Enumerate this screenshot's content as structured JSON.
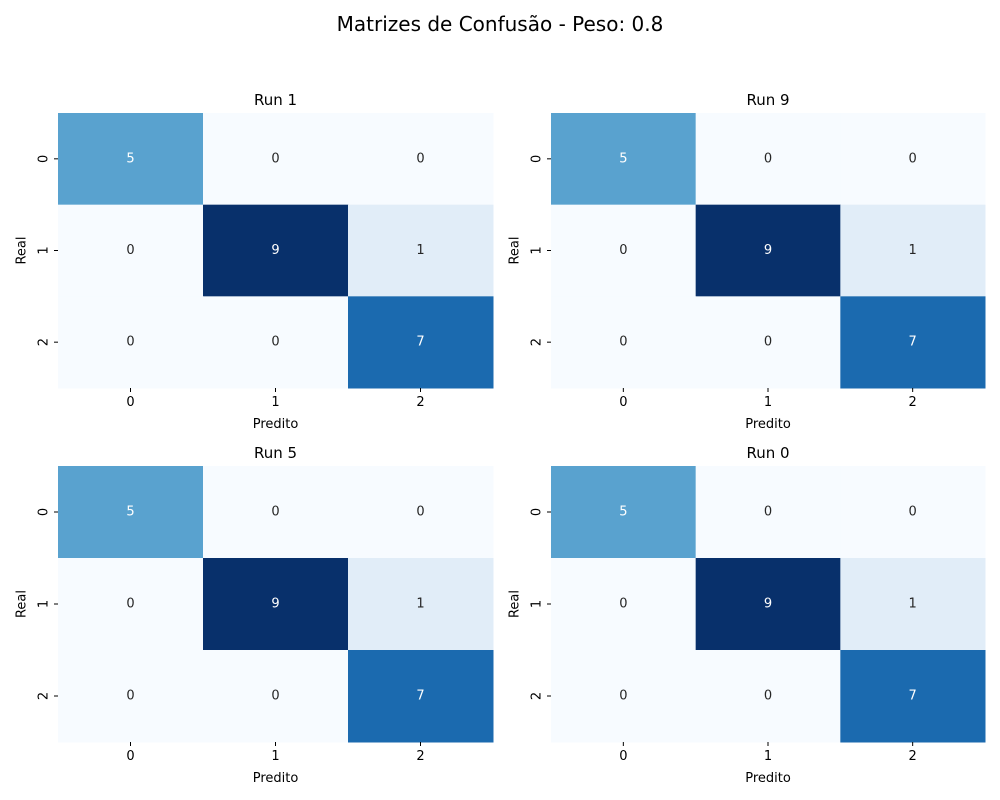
{
  "figure": {
    "title": "Matrizes de Confusão - Peso: 0.8"
  },
  "chart_data": [
    {
      "type": "heatmap",
      "title": "Run 1",
      "xlabel": "Predito",
      "ylabel": "Real",
      "x_ticks": [
        "0",
        "1",
        "2"
      ],
      "y_ticks": [
        "0",
        "1",
        "2"
      ],
      "matrix": [
        [
          5,
          0,
          0
        ],
        [
          0,
          9,
          1
        ],
        [
          0,
          0,
          7
        ]
      ],
      "colormap": "Blues",
      "vmin": 0,
      "vmax": 9,
      "colorbar": false
    },
    {
      "type": "heatmap",
      "title": "Run 9",
      "xlabel": "Predito",
      "ylabel": "Real",
      "x_ticks": [
        "0",
        "1",
        "2"
      ],
      "y_ticks": [
        "0",
        "1",
        "2"
      ],
      "matrix": [
        [
          5,
          0,
          0
        ],
        [
          0,
          9,
          1
        ],
        [
          0,
          0,
          7
        ]
      ],
      "colormap": "Blues",
      "vmin": 0,
      "vmax": 9,
      "colorbar": false
    },
    {
      "type": "heatmap",
      "title": "Run 5",
      "xlabel": "Predito",
      "ylabel": "Real",
      "x_ticks": [
        "0",
        "1",
        "2"
      ],
      "y_ticks": [
        "0",
        "1",
        "2"
      ],
      "matrix": [
        [
          5,
          0,
          0
        ],
        [
          0,
          9,
          1
        ],
        [
          0,
          0,
          7
        ]
      ],
      "colormap": "Blues",
      "vmin": 0,
      "vmax": 9,
      "colorbar": false
    },
    {
      "type": "heatmap",
      "title": "Run 0",
      "xlabel": "Predito",
      "ylabel": "Real",
      "x_ticks": [
        "0",
        "1",
        "2"
      ],
      "y_ticks": [
        "0",
        "1",
        "2"
      ],
      "matrix": [
        [
          5,
          0,
          0
        ],
        [
          0,
          9,
          1
        ],
        [
          0,
          0,
          7
        ]
      ],
      "colormap": "Blues",
      "vmin": 0,
      "vmax": 9,
      "colorbar": false
    }
  ]
}
